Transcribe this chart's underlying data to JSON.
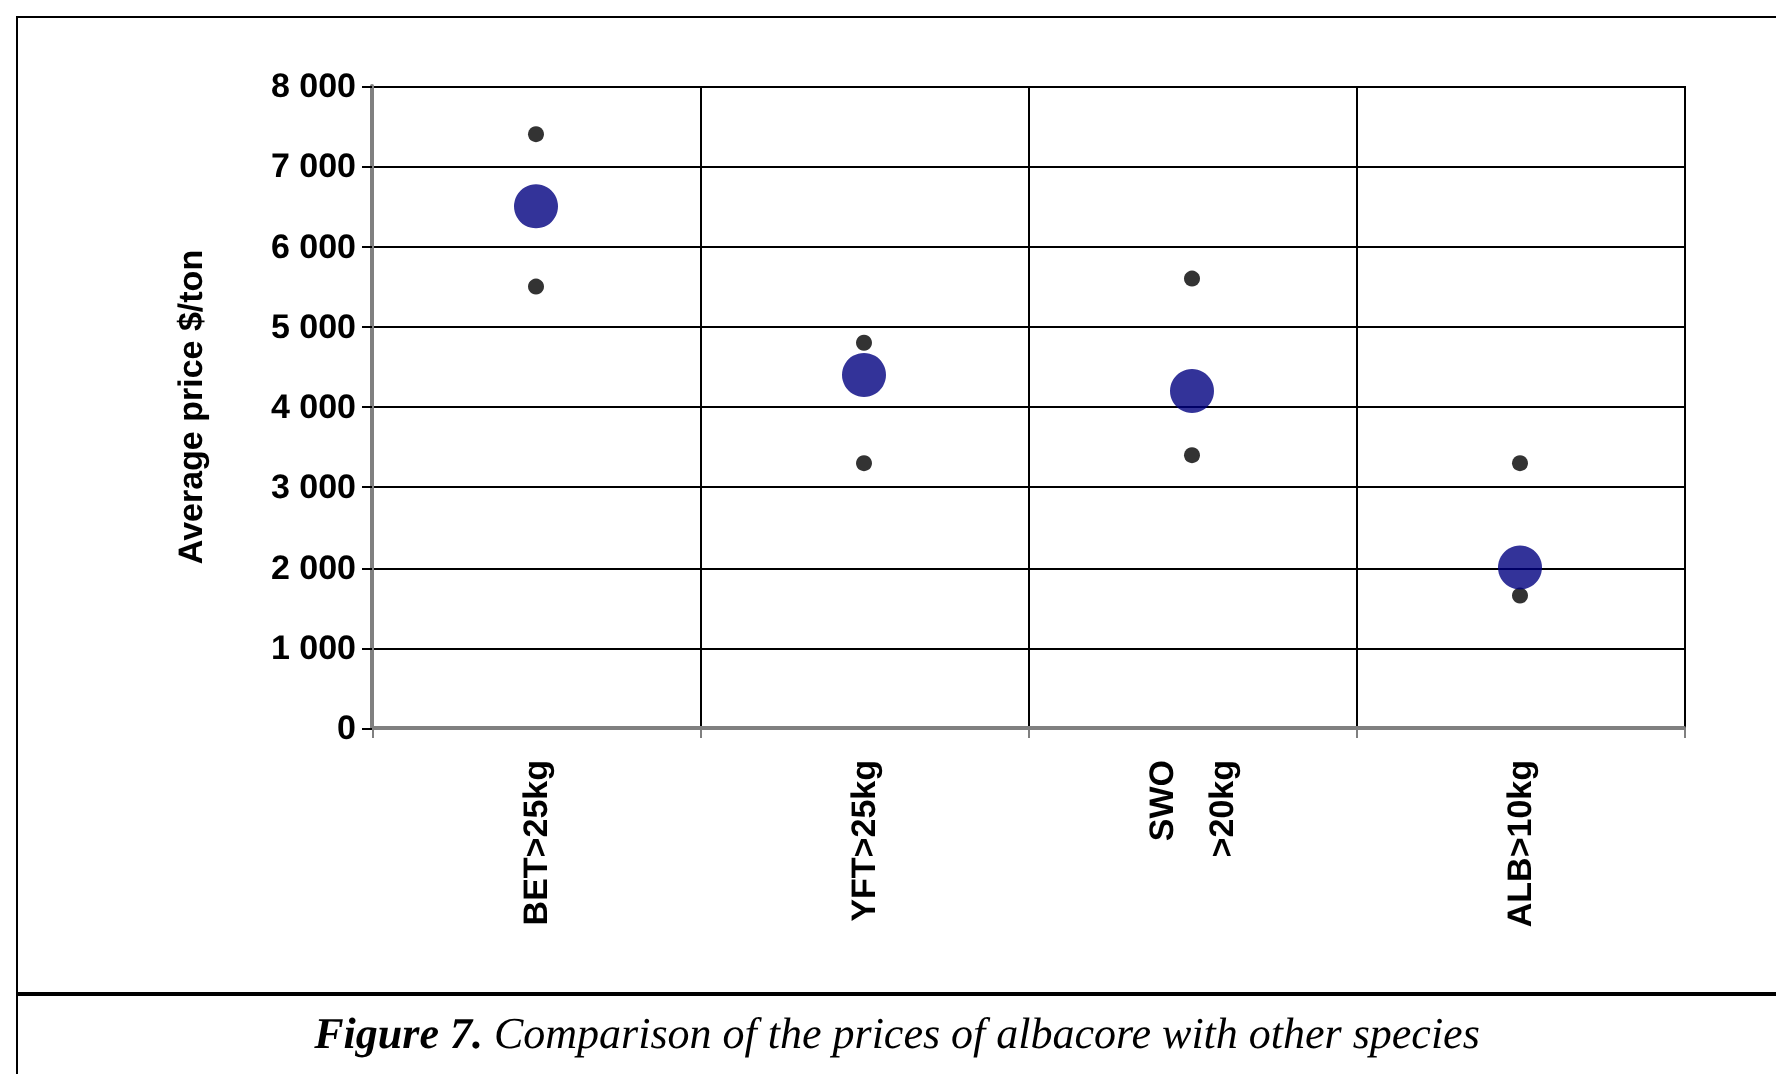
{
  "chart_data": {
    "type": "scatter",
    "ylabel": "Average price $/ton",
    "categories": [
      "BET>25kg",
      "YFT>25kg",
      "SWO >20kg",
      "ALB>10kg"
    ],
    "series": [
      {
        "color": "#000080",
        "values": [
          6500,
          4400,
          4200,
          2000
        ]
      },
      {
        "color": "#000000",
        "values": [
          7400,
          4800,
          5600,
          3300
        ]
      },
      {
        "color": "#000000",
        "values": [
          5500,
          3300,
          3400,
          1650
        ]
      }
    ],
    "ylim": [
      0,
      8000
    ],
    "yticks": [
      0,
      {
        "value": 1000,
        "label": "1 000"
      },
      {
        "value": 2000,
        "label": "2 000"
      },
      {
        "value": 3000,
        "label": "3 000"
      },
      {
        "value": 4000,
        "label": "4 000"
      },
      {
        "value": 5000,
        "label": "5 000"
      },
      {
        "value": 6000,
        "label": "6 000"
      },
      {
        "value": 7000,
        "label": "7 000"
      },
      {
        "value": 8000,
        "label": "8 000"
      }
    ],
    "grid": true,
    "marker": "circle",
    "annotations": [
      "Figure 7.",
      "Comparison of the prices of albacore with other species"
    ]
  }
}
